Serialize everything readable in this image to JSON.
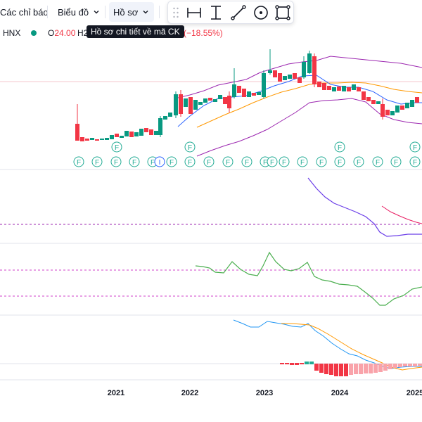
{
  "toolbar": {
    "indicators_label": "Các chỉ báo",
    "chart_label": "Biểu đồ",
    "profile_label": "Hồ sơ"
  },
  "tooltip": {
    "text": "Hồ sơ chi tiết về mã CK"
  },
  "legend": {
    "exchange": "HNX",
    "open_prefix": "O",
    "open_value": "24.00",
    "high_prefix": "H2",
    "change_text": "0 (−18.55%)"
  },
  "colors": {
    "up": "#089981",
    "down": "#f23645",
    "ma_orange": "#ff9800",
    "band_purple": "#9c27b0",
    "event_green": "#22ab94",
    "macd_blue": "#2196f3"
  },
  "event_markers": {
    "letter_f": "F",
    "letter_i": "I"
  },
  "chart_data": {
    "type": "candlestick",
    "x_ticks": [
      "2021",
      "2022",
      "2023",
      "2024",
      "2025"
    ]
  }
}
